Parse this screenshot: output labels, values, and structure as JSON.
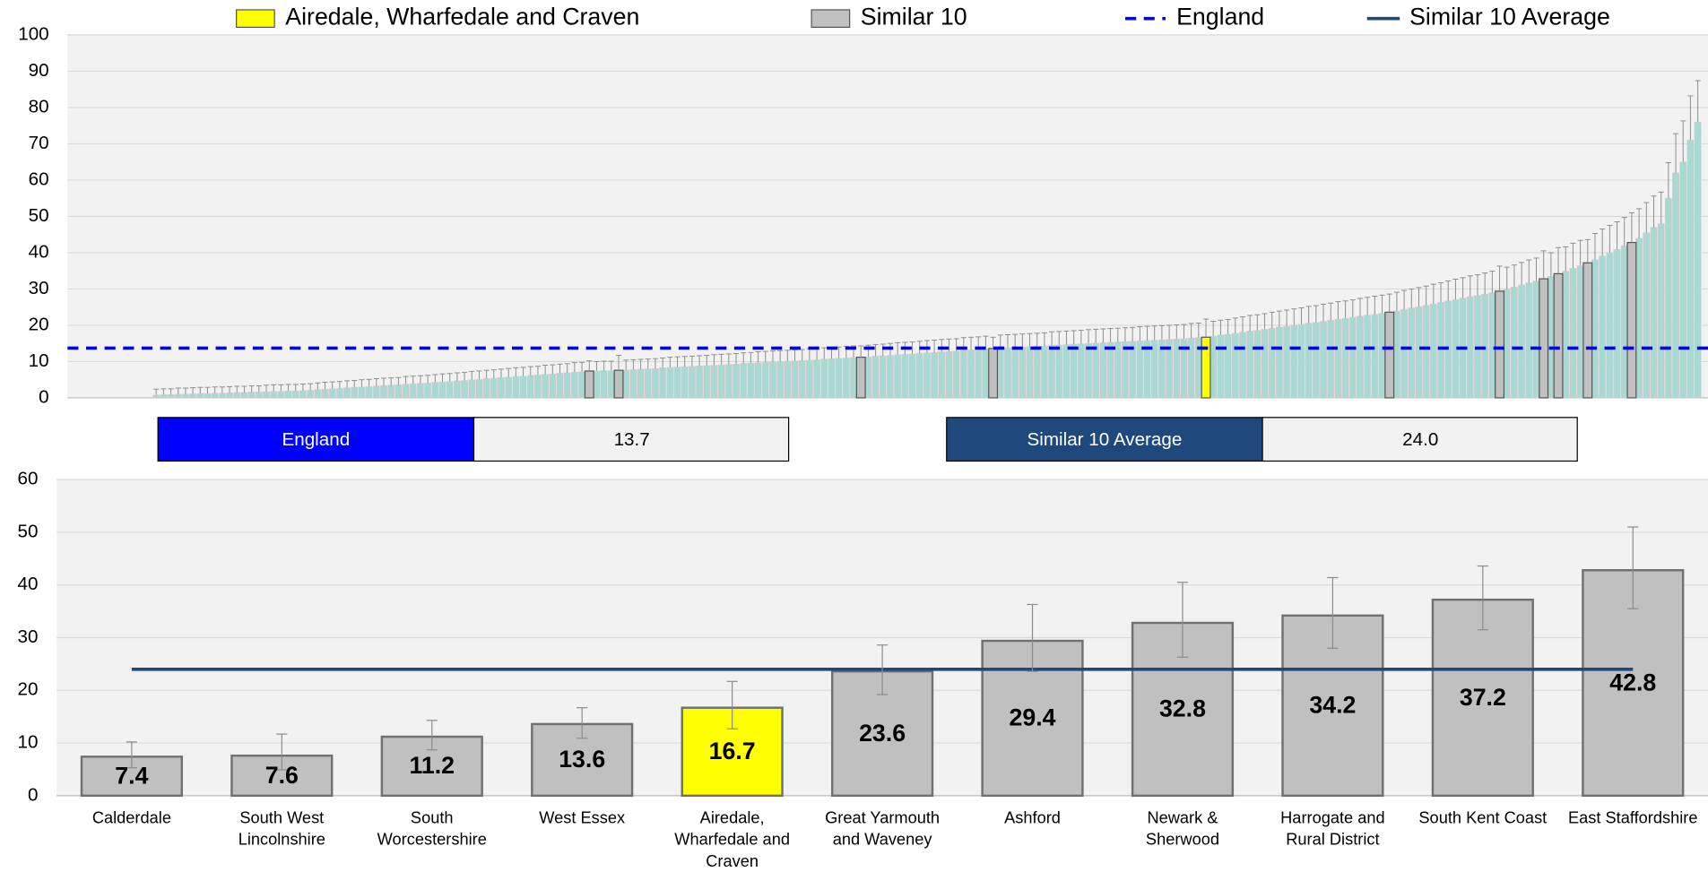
{
  "chart_data": [
    {
      "type": "bar",
      "ylim": [
        0,
        100
      ],
      "yticks": [
        0,
        10,
        20,
        30,
        40,
        50,
        60,
        70,
        80,
        90,
        100
      ],
      "grid": true,
      "color": "#a9d9d2",
      "highlights": [
        {
          "name": "Airedale, Wharfedale and Craven",
          "color": "#ffff00",
          "indices": [
            143
          ]
        },
        {
          "name": "Similar 10",
          "color": "#c0c0c0",
          "indices": [
            59,
            63,
            96,
            114,
            168,
            183,
            189,
            191,
            195,
            201
          ]
        }
      ],
      "values": [
        0.8,
        0.9,
        0.9,
        1.0,
        1.0,
        1.1,
        1.2,
        1.2,
        1.3,
        1.3,
        1.4,
        1.5,
        1.5,
        1.6,
        1.6,
        1.7,
        1.8,
        1.8,
        1.9,
        1.9,
        2.0,
        2.1,
        2.3,
        2.4,
        2.5,
        2.6,
        2.8,
        2.9,
        3.0,
        3.1,
        3.3,
        3.4,
        3.5,
        3.6,
        3.8,
        3.9,
        4.0,
        4.1,
        4.3,
        4.4,
        4.5,
        4.7,
        4.8,
        5.0,
        5.1,
        5.3,
        5.4,
        5.6,
        5.7,
        5.9,
        6.0,
        6.2,
        6.3,
        6.5,
        6.6,
        6.8,
        6.9,
        7.1,
        7.2,
        7.4,
        7.4,
        7.5,
        7.5,
        7.6,
        7.7,
        7.8,
        7.9,
        8.0,
        8.1,
        8.3,
        8.4,
        8.5,
        8.6,
        8.7,
        8.8,
        8.9,
        9.0,
        9.1,
        9.2,
        9.3,
        9.5,
        9.6,
        9.7,
        9.8,
        9.9,
        10.0,
        10.1,
        10.2,
        10.3,
        10.4,
        10.5,
        10.7,
        10.8,
        10.9,
        11.0,
        11.1,
        11.2,
        11.3,
        11.5,
        11.6,
        11.7,
        11.9,
        12.0,
        12.1,
        12.3,
        12.4,
        12.5,
        12.7,
        12.8,
        12.9,
        13.1,
        13.2,
        13.3,
        13.5,
        13.6,
        13.7,
        13.8,
        13.9,
        14.0,
        14.1,
        14.2,
        14.3,
        14.5,
        14.6,
        14.7,
        14.8,
        14.9,
        15.0,
        15.1,
        15.2,
        15.3,
        15.4,
        15.5,
        15.6,
        15.7,
        15.8,
        15.9,
        16.0,
        16.1,
        16.2,
        16.3,
        16.5,
        16.6,
        16.7,
        17.0,
        17.3,
        17.5,
        17.8,
        18.1,
        18.4,
        18.6,
        18.9,
        19.2,
        19.5,
        19.7,
        20.0,
        20.3,
        20.6,
        20.8,
        21.1,
        21.4,
        21.7,
        21.9,
        22.2,
        22.5,
        22.8,
        23.0,
        23.3,
        23.6,
        24.0,
        24.4,
        24.8,
        25.1,
        25.5,
        25.9,
        26.3,
        26.7,
        27.1,
        27.5,
        27.9,
        28.2,
        28.6,
        29.0,
        29.4,
        30.0,
        30.5,
        31.1,
        31.7,
        32.2,
        32.8,
        33.5,
        34.2,
        34.9,
        35.7,
        36.4,
        37.2,
        38.1,
        39.1,
        40.0,
        40.9,
        41.9,
        42.8,
        44,
        45.5,
        47,
        48,
        55,
        62,
        65,
        71,
        76
      ],
      "upper": [
        2.4,
        2.5,
        2.5,
        2.7,
        2.7,
        2.8,
        2.9,
        2.9,
        3.0,
        3.0,
        3.1,
        3.2,
        3.2,
        3.3,
        3.3,
        3.5,
        3.6,
        3.6,
        3.7,
        3.7,
        3.8,
        3.9,
        4.1,
        4.3,
        4.4,
        4.5,
        4.7,
        4.8,
        5.0,
        5.1,
        5.3,
        5.4,
        5.5,
        5.6,
        5.9,
        6.0,
        6.1,
        6.2,
        6.4,
        6.6,
        6.7,
        6.9,
        7.0,
        7.3,
        7.4,
        7.6,
        7.7,
        7.9,
        8.1,
        8.3,
        8.4,
        8.6,
        8.7,
        9.0,
        9.1,
        9.3,
        9.4,
        9.7,
        9.8,
        10.2,
        10.0,
        10.1,
        10.1,
        11.7,
        10.4,
        10.5,
        10.6,
        10.7,
        10.8,
        11.0,
        11.2,
        11.3,
        11.4,
        11.5,
        11.6,
        11.7,
        11.9,
        12.0,
        12.1,
        12.2,
        12.4,
        12.5,
        12.7,
        12.8,
        12.9,
        13.0,
        13.1,
        13.2,
        13.3,
        13.5,
        13.6,
        13.8,
        13.9,
        14.0,
        14.2,
        14.3,
        14.3,
        14.5,
        14.7,
        14.8,
        15.0,
        15.2,
        15.3,
        15.4,
        15.6,
        15.8,
        15.9,
        16.1,
        16.2,
        16.3,
        16.6,
        16.7,
        16.8,
        17.0,
        16.7,
        17.3,
        17.4,
        17.5,
        17.6,
        17.7,
        17.8,
        17.9,
        18.2,
        18.3,
        18.4,
        18.5,
        18.6,
        18.8,
        18.9,
        19.0,
        19.1,
        19.2,
        19.3,
        19.4,
        19.6,
        19.7,
        19.8,
        19.9,
        20.0,
        20.1,
        20.2,
        20.5,
        20.6,
        21.7,
        21.1,
        21.4,
        21.6,
        22.0,
        22.3,
        22.7,
        22.9,
        23.2,
        23.6,
        23.9,
        24.2,
        24.5,
        24.8,
        25.2,
        25.4,
        25.8,
        26.1,
        26.5,
        26.7,
        27.0,
        27.4,
        27.7,
        28.0,
        28.3,
        28.6,
        29.1,
        29.6,
        30.0,
        30.4,
        30.8,
        31.3,
        31.7,
        32.2,
        32.7,
        33.1,
        33.6,
        33.9,
        34.4,
        34.9,
        36.3,
        36.0,
        36.6,
        37.3,
        38.0,
        38.5,
        40.5,
        40.0,
        41.4,
        41.6,
        42.6,
        43.4,
        43.6,
        45.3,
        46.5,
        47.5,
        48.5,
        49.7,
        51.0,
        52.1,
        53.8,
        55.6,
        56.7,
        64.8,
        72.8,
        76.3,
        83.2,
        87.4
      ]
    },
    {
      "type": "bar",
      "ylim": [
        0,
        60
      ],
      "yticks": [
        0,
        10,
        20,
        30,
        40,
        50,
        60
      ],
      "grid": true,
      "selected": 4,
      "categories": [
        "Calderdale",
        "South West Lincolnshire",
        "South Worcestershire",
        "West Essex",
        "Airedale, Wharfedale and Craven",
        "Great Yarmouth and Waveney",
        "Ashford",
        "Newark & Sherwood",
        "Harrogate and Rural District",
        "South Kent Coast",
        "East Staffordshire"
      ],
      "values": [
        7.4,
        7.6,
        11.2,
        13.6,
        16.7,
        23.6,
        29.4,
        32.8,
        34.2,
        37.2,
        42.8
      ],
      "lower": [
        5.3,
        4.9,
        8.7,
        10.9,
        12.7,
        19.2,
        23.6,
        26.3,
        28.0,
        31.5,
        35.5
      ],
      "upper": [
        10.2,
        11.7,
        14.3,
        16.7,
        21.7,
        28.6,
        36.3,
        40.5,
        41.4,
        43.6,
        51.0
      ]
    }
  ],
  "summary": [
    {
      "name": "England",
      "value": 13.7,
      "value_label": "13.7",
      "color": "#0000ff"
    },
    {
      "name": "Similar 10 Average",
      "value": 24.0,
      "value_label": "24.0",
      "color": "#1f497d"
    }
  ]
}
